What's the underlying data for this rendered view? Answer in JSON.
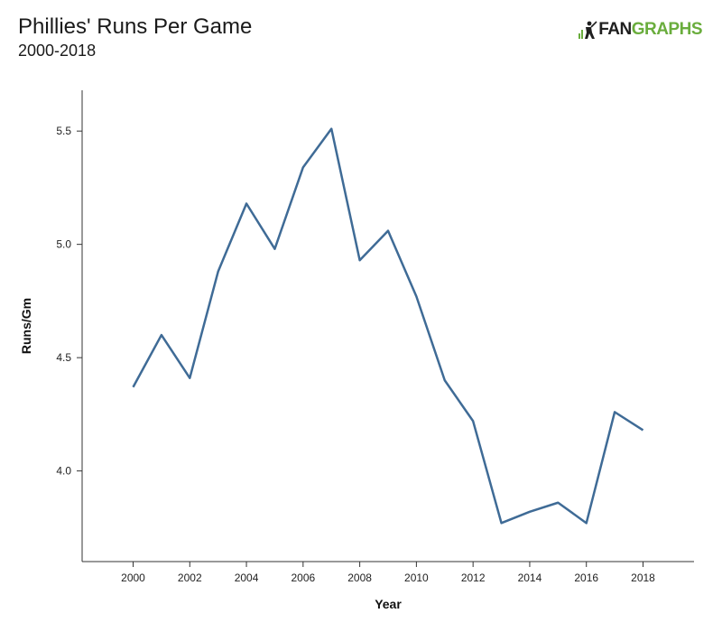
{
  "header": {
    "title": "Phillies' Runs Per Game",
    "subtitle": "2000-2018"
  },
  "logo": {
    "text_left": "FAN",
    "text_right": "GRAPHS",
    "icon": "fangraphs-batter-icon",
    "colors": {
      "dark": "#1f1f1f",
      "green": "#6aad3d"
    }
  },
  "chart_data": {
    "type": "line",
    "xlabel": "Year",
    "ylabel": "Runs/Gm",
    "xlim": [
      1998.2,
      2019.8
    ],
    "ylim": [
      3.6,
      5.68
    ],
    "x_ticks": [
      2000,
      2002,
      2004,
      2006,
      2008,
      2010,
      2012,
      2014,
      2016,
      2018
    ],
    "y_ticks": [
      4.0,
      4.5,
      5.0,
      5.5
    ],
    "y_tick_labels": [
      "4.0",
      "4.5",
      "5.0",
      "5.5"
    ],
    "grid": false,
    "line_color": "#3f6b96",
    "series": [
      {
        "x": [
          2000,
          2001,
          2002,
          2003,
          2004,
          2005,
          2006,
          2007,
          2008,
          2009,
          2010,
          2011,
          2012,
          2013,
          2014,
          2015,
          2016,
          2017,
          2018
        ],
        "values": [
          4.37,
          4.6,
          4.41,
          4.88,
          5.18,
          4.98,
          5.34,
          5.51,
          4.93,
          5.06,
          4.77,
          4.4,
          4.22,
          3.77,
          3.82,
          3.86,
          3.77,
          4.26,
          4.18
        ]
      }
    ]
  }
}
